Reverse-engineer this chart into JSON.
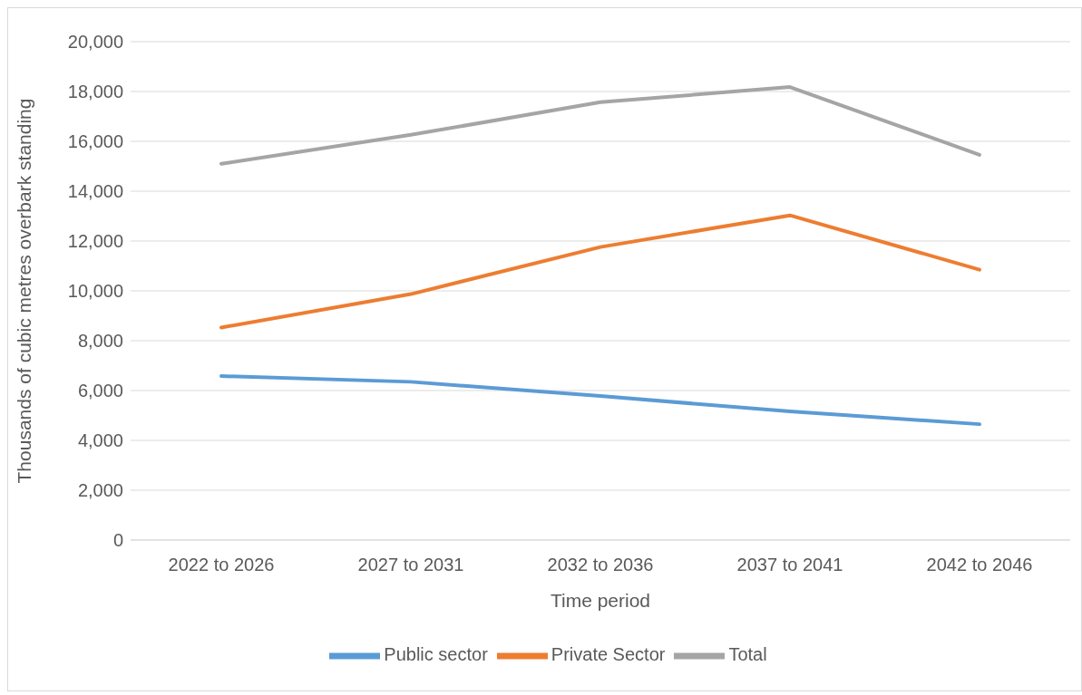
{
  "chart_data": {
    "type": "line",
    "xlabel": "Time period",
    "ylabel": "Thousands of cubic metres overbark standing",
    "categories": [
      "2022 to 2026",
      "2027 to 2031",
      "2032 to 2036",
      "2037 to 2041",
      "2042 to 2046"
    ],
    "series": [
      {
        "name": "Public sector",
        "color": "#5b9bd5",
        "values": [
          6580,
          6350,
          5780,
          5160,
          4650
        ]
      },
      {
        "name": "Private Sector",
        "color": "#ed7d31",
        "values": [
          8530,
          9870,
          11760,
          13030,
          10850
        ]
      },
      {
        "name": "Total",
        "color": "#a5a5a5",
        "values": [
          15100,
          16260,
          17570,
          18180,
          15460
        ]
      }
    ],
    "ylim": [
      0,
      20000
    ],
    "yticks": [
      0,
      {
        "value": 2000,
        "label": "2,000"
      },
      {
        "value": 4000,
        "label": "4,000"
      },
      {
        "value": 6000,
        "label": "6,000"
      },
      {
        "value": 8000,
        "label": "8,000"
      },
      {
        "value": 10000,
        "label": "10,000"
      },
      {
        "value": 12000,
        "label": "12,000"
      },
      {
        "value": 14000,
        "label": "14,000"
      },
      {
        "value": 16000,
        "label": "16,000"
      },
      {
        "value": 18000,
        "label": "18,000"
      },
      {
        "value": 20000,
        "label": "20,000"
      }
    ],
    "grid": "y",
    "legend": "bottom",
    "marker": "none",
    "line_style": "solid"
  }
}
